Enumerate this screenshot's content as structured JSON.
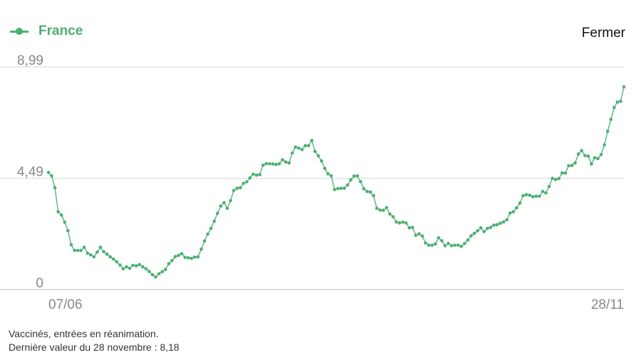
{
  "header": {
    "legend_label": "France",
    "close_label": "Fermer"
  },
  "colors": {
    "series": "#4caf72",
    "grid": "#d8d8d8",
    "axis_text": "#888888"
  },
  "icons": {
    "legend": "line-dot-icon"
  },
  "footer": {
    "line1": "Vaccinés, entrées en réanimation.",
    "line2": "Dernière valeur du 28 novembre : 8,18"
  },
  "chart_data": {
    "type": "line",
    "title": "",
    "xlabel": "",
    "ylabel": "",
    "x_tick_labels": [
      "07/06",
      "28/11"
    ],
    "y_tick_labels": [
      "0",
      "4,49",
      "8,99"
    ],
    "ylim": [
      0,
      8.99
    ],
    "grid": true,
    "legend_position": "top-left",
    "series": [
      {
        "name": "France",
        "values": [
          4.73,
          4.59,
          4.11,
          3.14,
          3.01,
          2.72,
          2.38,
          1.81,
          1.58,
          1.58,
          1.58,
          1.71,
          1.47,
          1.4,
          1.32,
          1.51,
          1.71,
          1.53,
          1.43,
          1.32,
          1.23,
          1.12,
          0.99,
          0.84,
          0.92,
          0.86,
          0.98,
          0.96,
          1.01,
          0.92,
          0.84,
          0.73,
          0.6,
          0.51,
          0.64,
          0.72,
          0.81,
          1.04,
          1.17,
          1.33,
          1.38,
          1.45,
          1.3,
          1.28,
          1.26,
          1.31,
          1.32,
          1.63,
          1.96,
          2.24,
          2.47,
          2.76,
          3.08,
          3.37,
          3.51,
          3.28,
          3.59,
          4.0,
          4.09,
          4.11,
          4.29,
          4.35,
          4.51,
          4.66,
          4.62,
          4.64,
          5.02,
          5.08,
          5.08,
          5.07,
          5.05,
          5.08,
          5.24,
          5.15,
          5.11,
          5.51,
          5.75,
          5.71,
          5.65,
          5.81,
          5.81,
          6.02,
          5.58,
          5.4,
          5.19,
          4.89,
          4.67,
          4.59,
          4.04,
          4.08,
          4.09,
          4.09,
          4.22,
          4.43,
          4.58,
          4.59,
          4.36,
          4.07,
          3.96,
          3.94,
          3.79,
          3.28,
          3.21,
          3.2,
          3.31,
          3.05,
          2.94,
          2.73,
          2.69,
          2.72,
          2.69,
          2.49,
          2.51,
          2.19,
          2.25,
          2.16,
          1.88,
          1.79,
          1.79,
          1.84,
          2.09,
          1.97,
          1.77,
          1.86,
          1.77,
          1.79,
          1.79,
          1.74,
          1.86,
          2.0,
          2.17,
          2.27,
          2.37,
          2.49,
          2.34,
          2.47,
          2.51,
          2.6,
          2.62,
          2.68,
          2.73,
          2.82,
          3.09,
          3.14,
          3.3,
          3.49,
          3.79,
          3.83,
          3.81,
          3.75,
          3.77,
          3.77,
          3.96,
          3.9,
          4.16,
          4.49,
          4.44,
          4.48,
          4.71,
          4.7,
          5.0,
          5.01,
          5.11,
          5.47,
          5.61,
          5.41,
          5.39,
          5.07,
          5.32,
          5.29,
          5.45,
          5.84,
          6.39,
          6.87,
          7.35,
          7.57,
          7.6,
          8.18
        ]
      }
    ]
  }
}
